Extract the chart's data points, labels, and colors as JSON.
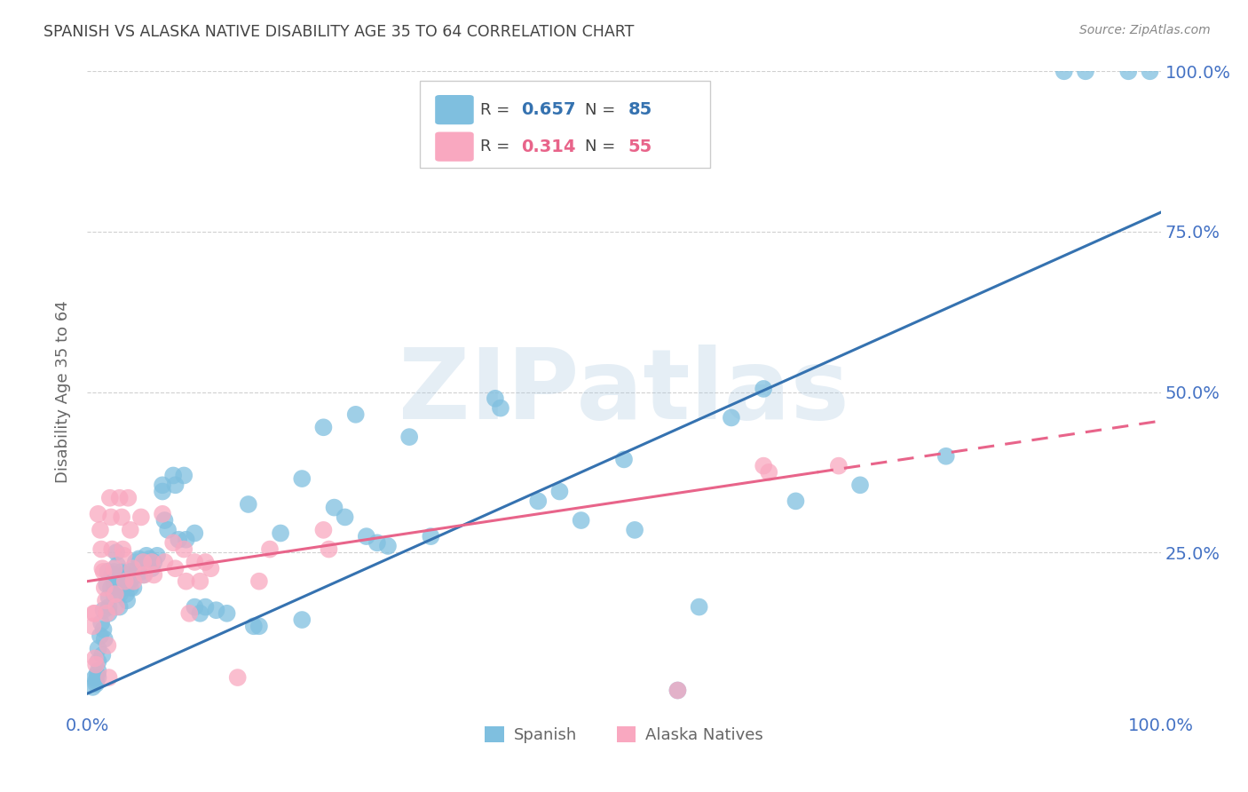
{
  "title": "SPANISH VS ALASKA NATIVE DISABILITY AGE 35 TO 64 CORRELATION CHART",
  "source": "Source: ZipAtlas.com",
  "ylabel": "Disability Age 35 to 64",
  "legend_label_blue": "Spanish",
  "legend_label_pink": "Alaska Natives",
  "watermark": "ZIPatlas",
  "blue_scatter_color": "#7fbfdf",
  "pink_scatter_color": "#f9a8c0",
  "blue_line_color": "#3572b0",
  "pink_line_color": "#e8648a",
  "title_color": "#444444",
  "axis_label_color": "#666666",
  "tick_color": "#4472c4",
  "grid_color": "#d0d0d0",
  "background_color": "#ffffff",
  "scatter_blue": [
    [
      0.005,
      0.04
    ],
    [
      0.007,
      0.055
    ],
    [
      0.008,
      0.05
    ],
    [
      0.008,
      0.045
    ],
    [
      0.009,
      0.06
    ],
    [
      0.01,
      0.1
    ],
    [
      0.01,
      0.08
    ],
    [
      0.01,
      0.065
    ],
    [
      0.01,
      0.055
    ],
    [
      0.012,
      0.12
    ],
    [
      0.013,
      0.14
    ],
    [
      0.014,
      0.09
    ],
    [
      0.015,
      0.16
    ],
    [
      0.015,
      0.13
    ],
    [
      0.016,
      0.115
    ],
    [
      0.018,
      0.2
    ],
    [
      0.019,
      0.22
    ],
    [
      0.02,
      0.18
    ],
    [
      0.02,
      0.165
    ],
    [
      0.02,
      0.155
    ],
    [
      0.022,
      0.195
    ],
    [
      0.023,
      0.215
    ],
    [
      0.025,
      0.22
    ],
    [
      0.025,
      0.2
    ],
    [
      0.025,
      0.185
    ],
    [
      0.027,
      0.25
    ],
    [
      0.028,
      0.23
    ],
    [
      0.03,
      0.2
    ],
    [
      0.03,
      0.185
    ],
    [
      0.03,
      0.165
    ],
    [
      0.032,
      0.22
    ],
    [
      0.033,
      0.195
    ],
    [
      0.035,
      0.215
    ],
    [
      0.036,
      0.185
    ],
    [
      0.037,
      0.175
    ],
    [
      0.038,
      0.2
    ],
    [
      0.04,
      0.22
    ],
    [
      0.04,
      0.195
    ],
    [
      0.042,
      0.21
    ],
    [
      0.043,
      0.195
    ],
    [
      0.045,
      0.235
    ],
    [
      0.047,
      0.225
    ],
    [
      0.048,
      0.24
    ],
    [
      0.05,
      0.22
    ],
    [
      0.052,
      0.215
    ],
    [
      0.053,
      0.23
    ],
    [
      0.055,
      0.245
    ],
    [
      0.056,
      0.235
    ],
    [
      0.058,
      0.24
    ],
    [
      0.06,
      0.225
    ],
    [
      0.062,
      0.235
    ],
    [
      0.065,
      0.245
    ],
    [
      0.07,
      0.355
    ],
    [
      0.07,
      0.345
    ],
    [
      0.072,
      0.3
    ],
    [
      0.075,
      0.285
    ],
    [
      0.08,
      0.37
    ],
    [
      0.082,
      0.355
    ],
    [
      0.085,
      0.27
    ],
    [
      0.09,
      0.37
    ],
    [
      0.092,
      0.27
    ],
    [
      0.1,
      0.28
    ],
    [
      0.1,
      0.165
    ],
    [
      0.105,
      0.155
    ],
    [
      0.11,
      0.165
    ],
    [
      0.12,
      0.16
    ],
    [
      0.13,
      0.155
    ],
    [
      0.15,
      0.325
    ],
    [
      0.155,
      0.135
    ],
    [
      0.16,
      0.135
    ],
    [
      0.18,
      0.28
    ],
    [
      0.2,
      0.365
    ],
    [
      0.2,
      0.145
    ],
    [
      0.22,
      0.445
    ],
    [
      0.23,
      0.32
    ],
    [
      0.24,
      0.305
    ],
    [
      0.25,
      0.465
    ],
    [
      0.26,
      0.275
    ],
    [
      0.27,
      0.265
    ],
    [
      0.28,
      0.26
    ],
    [
      0.3,
      0.43
    ],
    [
      0.32,
      0.275
    ],
    [
      0.38,
      0.49
    ],
    [
      0.385,
      0.475
    ],
    [
      0.42,
      0.33
    ],
    [
      0.44,
      0.345
    ],
    [
      0.46,
      0.3
    ],
    [
      0.5,
      0.395
    ],
    [
      0.51,
      0.285
    ],
    [
      0.55,
      0.035
    ],
    [
      0.57,
      0.165
    ],
    [
      0.6,
      0.46
    ],
    [
      0.63,
      0.505
    ],
    [
      0.66,
      0.33
    ],
    [
      0.72,
      0.355
    ],
    [
      0.8,
      0.4
    ],
    [
      0.91,
      1.0
    ],
    [
      0.93,
      1.0
    ],
    [
      0.97,
      1.0
    ],
    [
      0.99,
      1.0
    ]
  ],
  "scatter_pink": [
    [
      0.005,
      0.135
    ],
    [
      0.006,
      0.155
    ],
    [
      0.007,
      0.155
    ],
    [
      0.007,
      0.085
    ],
    [
      0.008,
      0.075
    ],
    [
      0.01,
      0.31
    ],
    [
      0.012,
      0.285
    ],
    [
      0.013,
      0.255
    ],
    [
      0.014,
      0.225
    ],
    [
      0.015,
      0.22
    ],
    [
      0.016,
      0.195
    ],
    [
      0.017,
      0.175
    ],
    [
      0.018,
      0.155
    ],
    [
      0.019,
      0.105
    ],
    [
      0.02,
      0.055
    ],
    [
      0.021,
      0.335
    ],
    [
      0.022,
      0.305
    ],
    [
      0.023,
      0.255
    ],
    [
      0.025,
      0.225
    ],
    [
      0.026,
      0.185
    ],
    [
      0.027,
      0.165
    ],
    [
      0.03,
      0.335
    ],
    [
      0.032,
      0.305
    ],
    [
      0.033,
      0.255
    ],
    [
      0.034,
      0.245
    ],
    [
      0.035,
      0.205
    ],
    [
      0.038,
      0.335
    ],
    [
      0.04,
      0.285
    ],
    [
      0.042,
      0.225
    ],
    [
      0.043,
      0.205
    ],
    [
      0.05,
      0.305
    ],
    [
      0.052,
      0.235
    ],
    [
      0.053,
      0.215
    ],
    [
      0.06,
      0.235
    ],
    [
      0.062,
      0.215
    ],
    [
      0.07,
      0.31
    ],
    [
      0.072,
      0.235
    ],
    [
      0.08,
      0.265
    ],
    [
      0.082,
      0.225
    ],
    [
      0.09,
      0.255
    ],
    [
      0.092,
      0.205
    ],
    [
      0.095,
      0.155
    ],
    [
      0.1,
      0.235
    ],
    [
      0.105,
      0.205
    ],
    [
      0.11,
      0.235
    ],
    [
      0.115,
      0.225
    ],
    [
      0.14,
      0.055
    ],
    [
      0.16,
      0.205
    ],
    [
      0.17,
      0.255
    ],
    [
      0.22,
      0.285
    ],
    [
      0.225,
      0.255
    ],
    [
      0.55,
      0.035
    ],
    [
      0.63,
      0.385
    ],
    [
      0.635,
      0.375
    ],
    [
      0.7,
      0.385
    ]
  ],
  "blue_trend": {
    "x_start": 0.0,
    "y_start": 0.03,
    "x_end": 1.0,
    "y_end": 0.78
  },
  "pink_trend": {
    "x_start": 0.0,
    "y_start": 0.205,
    "x_end": 1.0,
    "y_end": 0.455
  },
  "pink_trend_solid_end": 0.68,
  "xlim": [
    0,
    1.0
  ],
  "ylim": [
    0,
    1.0
  ]
}
